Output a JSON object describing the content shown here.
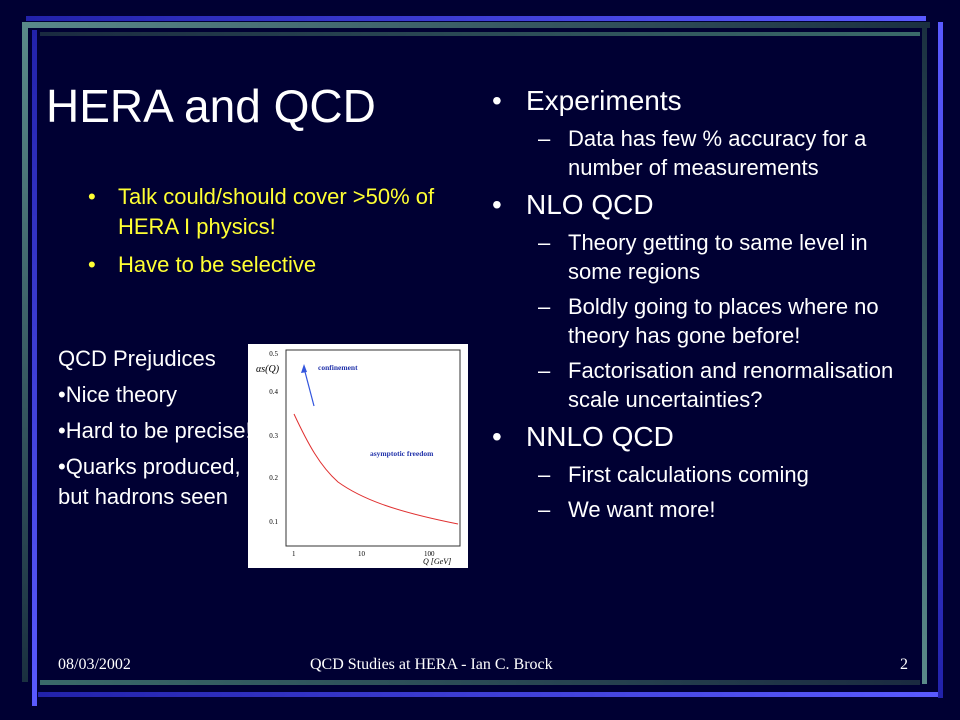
{
  "slide": {
    "title": "HERA and QCD",
    "left_bullets": [
      "Talk could/should cover >50% of HERA I physics!",
      "Have to be selective"
    ],
    "prejudices": {
      "heading": "QCD Prejudices",
      "items": [
        "Nice theory",
        "Hard to be precise!",
        "Quarks produced, but hadrons seen"
      ]
    },
    "figure": {
      "ylabel": "αs(Q)",
      "xlabel": "Q [GeV]",
      "annotations": [
        "confinement",
        "asymptotic freedom"
      ],
      "yticks": [
        "0.5",
        "0.4",
        "0.3",
        "0.2",
        "0.1"
      ],
      "xticks": [
        "1",
        "10",
        "100"
      ]
    },
    "right_list": [
      {
        "label": "Experiments",
        "sub": [
          "Data has few % accuracy for a number of measurements"
        ]
      },
      {
        "label": "NLO QCD",
        "sub": [
          "Theory getting to same level in some regions",
          "Boldly going to places where no theory has gone before!",
          "Factorisation and renormalisation scale uncertainties?"
        ]
      },
      {
        "label": "NNLO QCD",
        "sub": [
          "First calculations coming",
          "We want more!"
        ]
      }
    ],
    "bullet_glyph": "•",
    "dash_glyph": "–"
  },
  "footer": {
    "date": "08/03/2002",
    "title": "QCD Studies at HERA - Ian C. Brock",
    "page": "2"
  },
  "colors": {
    "background": "#000033",
    "highlight": "#ffff33",
    "text": "#ffffff",
    "frame_blue": "#4a4ae0",
    "frame_teal": "#2f5f6f"
  }
}
